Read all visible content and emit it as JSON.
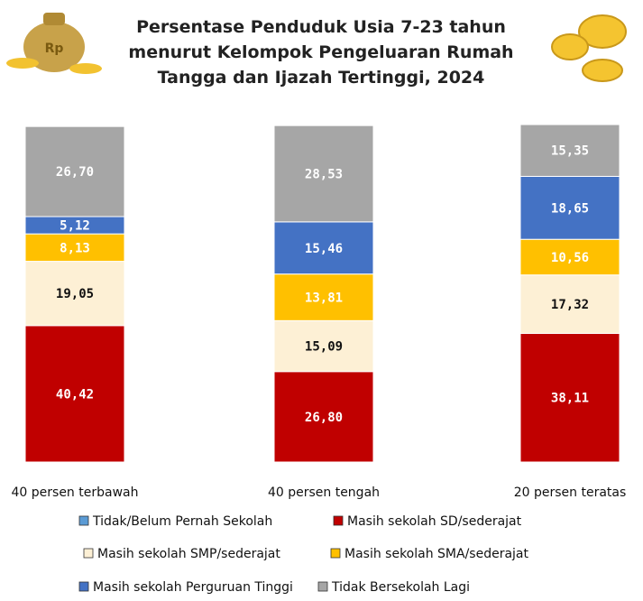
{
  "chart_data": {
    "type": "stacked-bar",
    "title_lines": [
      "Persentase Penduduk Usia 7-23 tahun",
      "menurut Kelompok Pengeluaran Rumah",
      "Tangga dan Ijazah Tertinggi, 2024"
    ],
    "categories": [
      "40 persen terbawah",
      "40 persen tengah",
      "20 persen teratas"
    ],
    "ylim": [
      0,
      100
    ],
    "series": [
      {
        "name": "Tidak/Belum Pernah Sekolah",
        "color": "#5b9bd5",
        "values": [
          null,
          null,
          null
        ]
      },
      {
        "name": "Masih sekolah SD/sederajat",
        "color": "#c00000",
        "values": [
          40.42,
          26.8,
          38.11
        ],
        "value_labels": [
          "40,42",
          "26,80",
          "38,11"
        ]
      },
      {
        "name": "Masih sekolah SMP/sederajat",
        "color": "#fdf0d5",
        "values": [
          19.05,
          15.09,
          17.32
        ],
        "value_labels": [
          "19,05",
          "15,09",
          "17,32"
        ]
      },
      {
        "name": "Masih sekolah SMA/sederajat",
        "color": "#ffc000",
        "values": [
          8.13,
          13.81,
          10.56
        ],
        "value_labels": [
          "8,13",
          "13,81",
          "10,56"
        ]
      },
      {
        "name": "Masih sekolah Perguruan Tinggi",
        "color": "#4472c4",
        "values": [
          5.12,
          15.46,
          18.65
        ],
        "value_labels": [
          "5,12",
          "15,46",
          "18,65"
        ]
      },
      {
        "name": "Tidak Bersekolah Lagi",
        "color": "#a6a6a6",
        "values": [
          26.7,
          28.53,
          15.35
        ],
        "value_labels": [
          "26,70",
          "28,53",
          "15,35"
        ]
      }
    ]
  }
}
